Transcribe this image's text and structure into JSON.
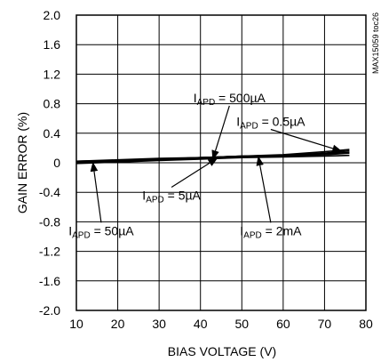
{
  "chart_data": {
    "type": "line",
    "title": "",
    "xlabel": "BIAS VOLTAGE (V)",
    "ylabel": "GAIN ERROR (%)",
    "xlim": [
      10,
      80
    ],
    "ylim": [
      -2.0,
      2.0
    ],
    "x_ticks": [
      "10",
      "20",
      "30",
      "40",
      "50",
      "60",
      "70",
      "80"
    ],
    "y_ticks": [
      "2.0",
      "1.6",
      "1.2",
      "0.8",
      "0.4",
      "0",
      "-0.4",
      "-0.8",
      "-1.2",
      "-1.6",
      "-2.0"
    ],
    "grid": true,
    "series": [
      {
        "name": "I_APD = 0.5µA",
        "x": [
          10,
          20,
          30,
          40,
          50,
          60,
          70,
          76
        ],
        "y": [
          0.02,
          0.03,
          0.05,
          0.07,
          0.09,
          0.11,
          0.15,
          0.18
        ]
      },
      {
        "name": "I_APD = 5µA",
        "x": [
          10,
          20,
          30,
          40,
          50,
          60,
          70,
          76
        ],
        "y": [
          0.02,
          0.03,
          0.05,
          0.07,
          0.09,
          0.1,
          0.13,
          0.16
        ]
      },
      {
        "name": "I_APD = 50µA",
        "x": [
          10,
          20,
          30,
          40,
          50,
          60,
          70,
          76
        ],
        "y": [
          0.01,
          0.02,
          0.04,
          0.06,
          0.08,
          0.09,
          0.11,
          0.13
        ]
      },
      {
        "name": "I_APD = 500µA",
        "x": [
          10,
          20,
          30,
          40,
          50,
          60,
          70,
          76
        ],
        "y": [
          0.02,
          0.04,
          0.06,
          0.07,
          0.09,
          0.1,
          0.12,
          0.14
        ]
      },
      {
        "name": "I_APD = 2mA",
        "x": [
          10,
          20,
          30,
          40,
          50,
          60,
          70,
          76
        ],
        "y": [
          -0.01,
          0.01,
          0.03,
          0.05,
          0.07,
          0.08,
          0.09,
          0.1
        ]
      }
    ],
    "annotations": [
      {
        "label_main": "I",
        "label_sub": "APD",
        "label_tail": " = 500µA",
        "text_x": 47,
        "text_y": 0.82,
        "arrow_to_x": 43,
        "arrow_to_y": 0.05
      },
      {
        "label_main": "I",
        "label_sub": "APD",
        "label_tail": " = 0.5µA",
        "text_x": 57,
        "text_y": 0.5,
        "arrow_to_x": 74,
        "arrow_to_y": 0.16
      },
      {
        "label_main": "I",
        "label_sub": "APD",
        "label_tail": " = 5µA",
        "text_x": 33,
        "text_y": -0.5,
        "arrow_to_x": 44,
        "arrow_to_y": 0.06
      },
      {
        "label_main": "I",
        "label_sub": "APD",
        "label_tail": " = 50µA",
        "text_x": 16,
        "text_y": -0.98,
        "arrow_to_x": 14,
        "arrow_to_y": 0.0
      },
      {
        "label_main": "I",
        "label_sub": "APD",
        "label_tail": " = 2mA",
        "text_x": 57,
        "text_y": -0.98,
        "arrow_to_x": 54,
        "arrow_to_y": 0.08
      }
    ],
    "watermark": "MAX15059 toc26"
  },
  "colors": {
    "line": "#000000",
    "grid": "#000000",
    "background": "#ffffff"
  }
}
